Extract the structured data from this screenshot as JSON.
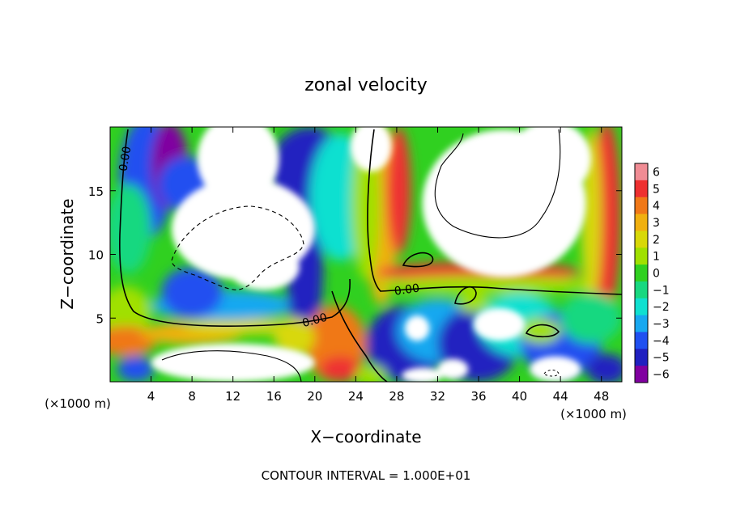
{
  "chart_data": {
    "type": "heatmap",
    "title": "zonal velocity",
    "xlabel": "X−coordinate",
    "ylabel": "Z−coordinate",
    "x_unit": "(×1000 m)",
    "z_unit": "(×1000 m)",
    "xlim": [
      0,
      50
    ],
    "ylim": [
      0,
      20
    ],
    "x_ticks": [
      4,
      8,
      12,
      16,
      20,
      24,
      28,
      32,
      36,
      40,
      44,
      48
    ],
    "x_tick_labels": [
      "4",
      "8",
      "12",
      "16",
      "20",
      "24",
      "28",
      "32",
      "36",
      "40",
      "44",
      "48"
    ],
    "y_ticks": [
      5,
      10,
      15
    ],
    "y_tick_labels": [
      "5",
      "10",
      "15"
    ],
    "colorbar": {
      "levels": [
        6,
        5,
        4,
        3,
        2,
        1,
        0,
        -1,
        -2,
        -3,
        -4,
        -5,
        -6
      ],
      "labels": [
        "6",
        "5",
        "4",
        "3",
        "2",
        "1",
        "0",
        "−1",
        "−2",
        "−3",
        "−4",
        "−5",
        "−6"
      ],
      "colors": [
        "#f08c94",
        "#ee3030",
        "#f07818",
        "#f0b010",
        "#d8d808",
        "#a0e000",
        "#30d020",
        "#18d880",
        "#10e0d0",
        "#18a8f0",
        "#2050f0",
        "#2020c0",
        "#8000a0"
      ]
    },
    "contour_labels": [
      {
        "x": 1.5,
        "z": 17.5,
        "text": "0.00",
        "rotate": -80
      },
      {
        "x": 29.0,
        "z": 7.2,
        "text": "0.00",
        "rotate": -8
      },
      {
        "x": 20.0,
        "z": 4.8,
        "text": "0.00",
        "rotate": -15
      }
    ],
    "footer": "CONTOUR INTERVAL = 1.000E+01",
    "blobs": [
      {
        "x": 3.5,
        "z": 16.0,
        "rx": 2.6,
        "rz": 4.8,
        "v": -4.5
      },
      {
        "x": 5.8,
        "z": 17.0,
        "rx": 1.8,
        "rz": 3.4,
        "v": -6
      },
      {
        "x": 7.5,
        "z": 15.5,
        "rx": 2.8,
        "rz": 2.2,
        "v": -4
      },
      {
        "x": 1.8,
        "z": 12.0,
        "rx": 2.2,
        "rz": 3.5,
        "v": -1.5
      },
      {
        "x": 1.5,
        "z": 5.5,
        "rx": 2.5,
        "rz": 2.0,
        "v": 0.5
      },
      {
        "x": 1.5,
        "z": 3.2,
        "rx": 3.0,
        "rz": 1.2,
        "v": 3.5
      },
      {
        "x": 8.0,
        "z": 3.8,
        "rx": 5.0,
        "rz": 0.9,
        "v": 3.0
      },
      {
        "x": 13.0,
        "z": 4.3,
        "rx": 6.0,
        "rz": 0.6,
        "v": 1.5
      },
      {
        "x": 2.5,
        "z": 1.0,
        "rx": 1.8,
        "rz": 1.0,
        "v": -4
      },
      {
        "x": 11.0,
        "z": 6.0,
        "rx": 7.0,
        "rz": 1.2,
        "v": -3.5
      },
      {
        "x": 8.0,
        "z": 7.0,
        "rx": 3.0,
        "rz": 2.0,
        "v": -4.5
      },
      {
        "x": 19.0,
        "z": 9.0,
        "rx": 1.8,
        "rz": 6.0,
        "v": -5
      },
      {
        "x": 19.5,
        "z": 16.5,
        "rx": 4.0,
        "rz": 3.5,
        "v": -5.5
      },
      {
        "x": 22.5,
        "z": 14.5,
        "rx": 3.0,
        "rz": 5.0,
        "v": -2
      },
      {
        "x": 22.0,
        "z": 3.0,
        "rx": 3.0,
        "rz": 3.0,
        "v": 3.5
      },
      {
        "x": 22.5,
        "z": 1.0,
        "rx": 2.0,
        "rz": 1.0,
        "v": 5
      },
      {
        "x": 18.0,
        "z": 3.5,
        "rx": 2.0,
        "rz": 1.5,
        "v": 2.0
      },
      {
        "x": 26.5,
        "z": 13.0,
        "rx": 1.6,
        "rz": 7.0,
        "v": 2.5
      },
      {
        "x": 28.2,
        "z": 15.0,
        "rx": 1.2,
        "rz": 5.0,
        "v": 5
      },
      {
        "x": 25.0,
        "z": 14.0,
        "rx": 1.4,
        "rz": 6.0,
        "v": 0.5
      },
      {
        "x": 36.0,
        "z": 8.6,
        "rx": 10.0,
        "rz": 0.8,
        "v": 5
      },
      {
        "x": 37.0,
        "z": 7.6,
        "rx": 11.0,
        "rz": 0.7,
        "v": 1.0
      },
      {
        "x": 48.5,
        "z": 13.0,
        "rx": 1.4,
        "rz": 7.5,
        "v": 5
      },
      {
        "x": 47.0,
        "z": 13.0,
        "rx": 1.0,
        "rz": 7.0,
        "v": 2.0
      },
      {
        "x": 29.0,
        "z": 3.0,
        "rx": 4.0,
        "rz": 3.0,
        "v": -5
      },
      {
        "x": 32.0,
        "z": 4.0,
        "rx": 4.0,
        "rz": 2.5,
        "v": -3
      },
      {
        "x": 36.0,
        "z": 3.0,
        "rx": 4.0,
        "rz": 3.0,
        "v": -5
      },
      {
        "x": 40.0,
        "z": 4.5,
        "rx": 4.0,
        "rz": 2.5,
        "v": -2.5
      },
      {
        "x": 44.0,
        "z": 3.0,
        "rx": 4.0,
        "rz": 2.5,
        "v": -4
      },
      {
        "x": 47.0,
        "z": 5.0,
        "rx": 3.0,
        "rz": 2.0,
        "v": -1.5
      },
      {
        "x": 42.0,
        "z": 4.0,
        "rx": 2.0,
        "rz": 1.0,
        "v": 1.0
      },
      {
        "x": 35.5,
        "z": 6.2,
        "rx": 1.5,
        "rz": 0.8,
        "v": 1.0
      },
      {
        "x": 48.5,
        "z": 1.0,
        "rx": 2.0,
        "rz": 1.2,
        "v": -5
      },
      {
        "x": 25.5,
        "z": 0.5,
        "rx": 1.5,
        "rz": 0.8,
        "v": 0.5
      }
    ],
    "voids": [
      {
        "x": 13.0,
        "z": 12.0,
        "rx": 7.0,
        "rz": 4.0
      },
      {
        "x": 12.5,
        "z": 17.5,
        "rx": 4.0,
        "rz": 3.5
      },
      {
        "x": 15.0,
        "z": 9.0,
        "rx": 3.5,
        "rz": 1.8
      },
      {
        "x": 25.5,
        "z": 18.5,
        "rx": 2.0,
        "rz": 2.0
      },
      {
        "x": 38.5,
        "z": 14.0,
        "rx": 8.0,
        "rz": 5.8
      },
      {
        "x": 43.0,
        "z": 17.5,
        "rx": 4.0,
        "rz": 3.0
      },
      {
        "x": 12.0,
        "z": 1.5,
        "rx": 8.0,
        "rz": 1.5
      },
      {
        "x": 38.0,
        "z": 4.5,
        "rx": 2.5,
        "rz": 1.3
      },
      {
        "x": 30.0,
        "z": 4.2,
        "rx": 1.2,
        "rz": 1.0
      },
      {
        "x": 43.5,
        "z": 1.0,
        "rx": 2.5,
        "rz": 1.0
      },
      {
        "x": 33.5,
        "z": 1.0,
        "rx": 1.5,
        "rz": 0.8
      },
      {
        "x": 30.5,
        "z": 0.5,
        "rx": 2.0,
        "rz": 0.6
      }
    ]
  }
}
